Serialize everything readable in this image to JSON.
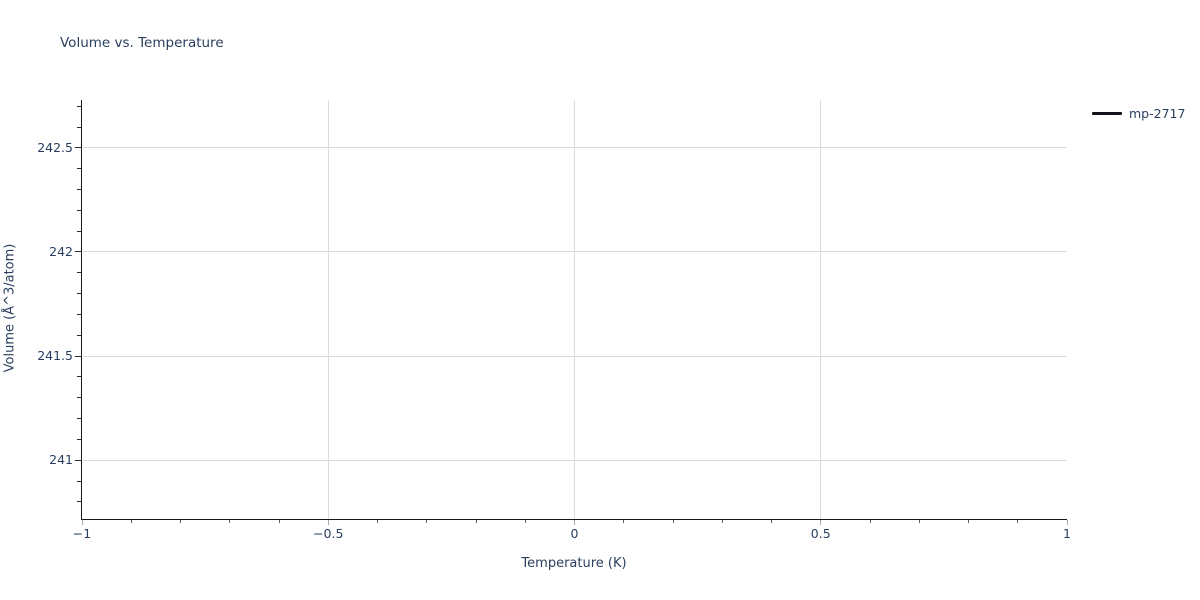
{
  "chart_data": {
    "type": "line",
    "title": "Volume vs. Temperature",
    "xlabel": "Temperature (K)",
    "ylabel": "Volume (Å^3/atom)",
    "xlim": [
      -1,
      1
    ],
    "ylim": [
      240.72,
      242.73
    ],
    "x_ticks": [
      {
        "v": -1,
        "label": "−1"
      },
      {
        "v": -0.5,
        "label": "−0.5"
      },
      {
        "v": 0,
        "label": "0"
      },
      {
        "v": 0.5,
        "label": "0.5"
      },
      {
        "v": 1,
        "label": "1"
      }
    ],
    "y_ticks": [
      {
        "v": 241,
        "label": "241"
      },
      {
        "v": 241.5,
        "label": "241.5"
      },
      {
        "v": 242,
        "label": "242"
      },
      {
        "v": 242.5,
        "label": "242.5"
      }
    ],
    "minor_step": {
      "x": 0.1,
      "y": 0.1
    },
    "grid": true,
    "legend_position": "outside-top-right",
    "series": [
      {
        "name": "mp-2717",
        "color": "#10131a",
        "mode": "lines",
        "values": []
      }
    ],
    "colors": {
      "text": "#2a3f5f",
      "grid": "#dcdcdc",
      "axis": "#17191d",
      "background": "#ffffff"
    }
  }
}
